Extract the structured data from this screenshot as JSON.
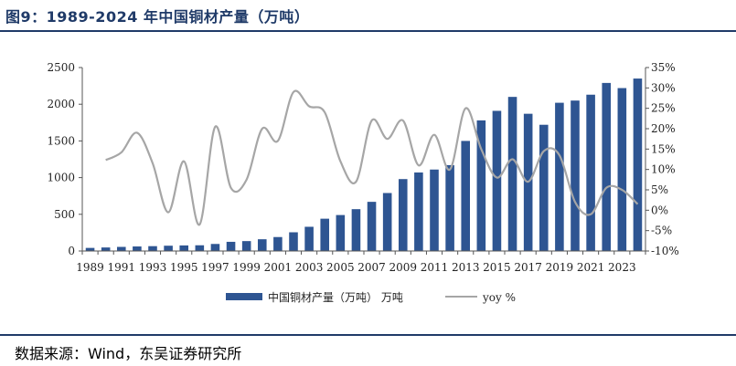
{
  "header": {
    "title": "图9：1989-2024 年中国铜材产量（万吨）"
  },
  "footer": {
    "source": "数据来源：Wind，东吴证券研究所"
  },
  "chart_data": {
    "type": "bar+line",
    "categories": [
      1989,
      1990,
      1991,
      1992,
      1993,
      1994,
      1995,
      1996,
      1997,
      1998,
      1999,
      2000,
      2001,
      2002,
      2003,
      2004,
      2005,
      2006,
      2007,
      2008,
      2009,
      2010,
      2011,
      2012,
      2013,
      2014,
      2015,
      2016,
      2017,
      2018,
      2019,
      2020,
      2021,
      2022,
      2023,
      2024
    ],
    "x_tick_labels": [
      "1989",
      "1991",
      "1993",
      "1995",
      "1997",
      "1999",
      "2001",
      "2003",
      "2005",
      "2007",
      "2009",
      "2011",
      "2013",
      "2015",
      "2017",
      "2019",
      "2021",
      "2023"
    ],
    "series": [
      {
        "name": "中国铜材产量（万吨） 万吨",
        "type": "bar",
        "axis": "left",
        "color": "#2e5592",
        "values": [
          42,
          48,
          56,
          62,
          66,
          72,
          76,
          78,
          96,
          125,
          135,
          160,
          190,
          255,
          330,
          440,
          490,
          570,
          670,
          790,
          980,
          1070,
          1110,
          1170,
          1500,
          1780,
          1910,
          2100,
          1870,
          1720,
          2020,
          2050,
          2130,
          2290,
          2220,
          2350
        ]
      },
      {
        "name": "yoy %",
        "type": "line",
        "axis": "right",
        "color": "#a6a6a6",
        "values": [
          null,
          12.3,
          14.2,
          19,
          11.5,
          -0.5,
          12,
          -3.5,
          20.5,
          5.5,
          7.5,
          20,
          17,
          29,
          25.5,
          24,
          12,
          7,
          22,
          17.5,
          22,
          11,
          18.5,
          10,
          25,
          15,
          8,
          12.5,
          7,
          14.5,
          13.5,
          2,
          -1,
          5.5,
          5,
          1.5
        ]
      }
    ],
    "y_left": {
      "ylim": [
        0,
        2500
      ],
      "ticks": [
        "0",
        "500",
        "1000",
        "1500",
        "2000",
        "2500"
      ]
    },
    "y_right": {
      "ylim": [
        -10,
        35
      ],
      "ticks": [
        "-10%",
        "-5%",
        "0%",
        "5%",
        "10%",
        "15%",
        "20%",
        "25%",
        "30%",
        "35%"
      ]
    },
    "grid": false,
    "legend_position": "bottom"
  }
}
